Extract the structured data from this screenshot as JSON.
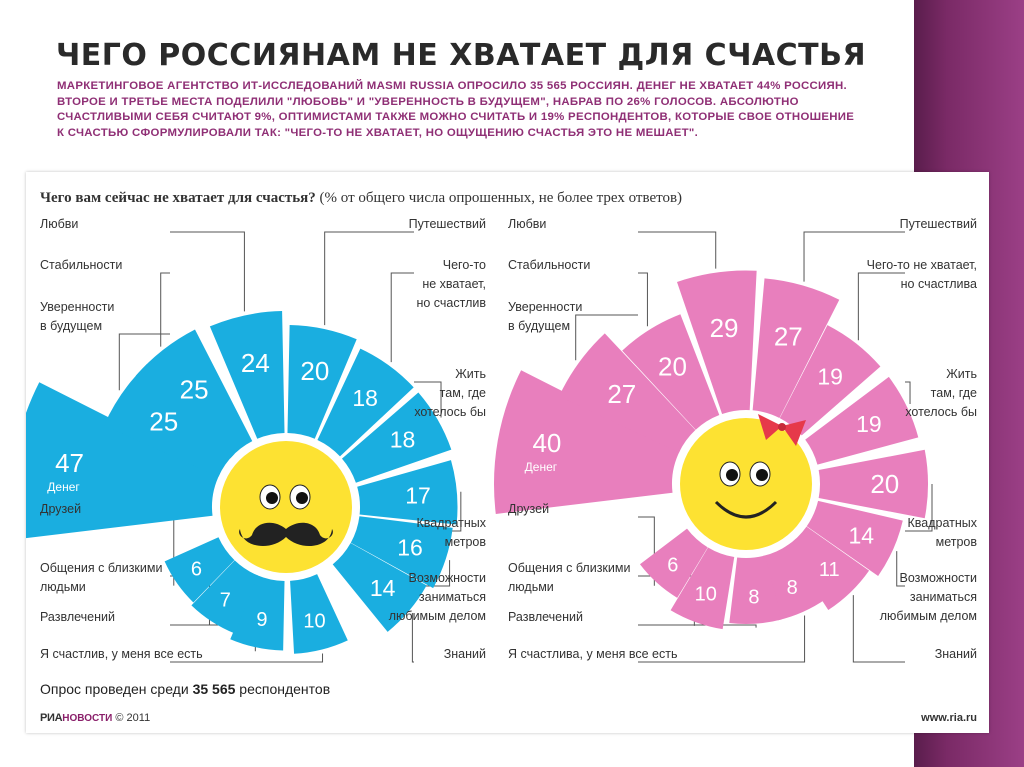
{
  "slide": {
    "title": "ЧЕГО РОССИЯНАМ НЕ ХВАТАЕТ ДЛЯ СЧАСТЬЯ",
    "subtitle": "Маркетинговое агентство ИТ-исследований Masmi Russia опросило 35 565 россиян. Денег не хватает 44% россиян. Второе и третье места поделили \"любовь\" и \"уверенность в будущем\", набрав по 26% голосов. Абсолютно счастливыми себя считают 9%, оптимистами также можно считать и 19% респондентов, которые свое отношение к счастью сформулировали так: \"Чего-то не хватает, но ощущению счастья это не мешает\"."
  },
  "panel": {
    "question": "Чего вам сейчас не хватает для счастья?",
    "question_note": "(% от общего числа опрошенных, не более трех ответов)",
    "footnote_prefix": "Опрос проведен среди",
    "footnote_count": "35 565",
    "footnote_suffix": "респондентов",
    "logo_ria": "РИА",
    "logo_novosti": "НОВОСТИ",
    "logo_year": "© 2011",
    "url": "www.ria.ru"
  },
  "chart_data": [
    {
      "type": "bar",
      "layout": "radial",
      "group": "men",
      "colors": {
        "bar": "#1aaee0",
        "face": "#fde232",
        "accent": "#222222"
      },
      "categories": [
        "Денег",
        "Уверенности в будущем",
        "Стабильности",
        "Любви",
        "Путешествий",
        "Чего-то не хватает, но счастлив",
        "Жить там, где хотелось бы",
        "Квадратных метров",
        "Возможности заниматься любимым делом",
        "Знаний",
        "Я счастлив, у меня все есть",
        "Развлечений",
        "Общения с близкими людьми",
        "Друзей"
      ],
      "values": [
        47,
        25,
        25,
        24,
        20,
        18,
        18,
        17,
        16,
        14,
        10,
        9,
        7,
        6
      ],
      "labels": [
        {
          "text": "Любви"
        },
        {
          "text": "Стабильности"
        },
        {
          "text": "Уверенности"
        },
        {
          "text": "в будущем"
        },
        {
          "text": "Путешествий"
        },
        {
          "text": "Чего-то"
        },
        {
          "text": "не хватает,"
        },
        {
          "text": "но счастлив"
        },
        {
          "text": "Жить"
        },
        {
          "text": "там, где"
        },
        {
          "text": "хотелось бы"
        },
        {
          "text": "Квадратных"
        },
        {
          "text": "метров"
        },
        {
          "text": "Возможности"
        },
        {
          "text": "заниматься"
        },
        {
          "text": "любимым делом"
        },
        {
          "text": "Знаний"
        },
        {
          "text": "Друзей"
        },
        {
          "text": "Общения с близкими"
        },
        {
          "text": "людьми"
        },
        {
          "text": "Развлечений"
        },
        {
          "text": "Я счастлив, у меня все есть"
        }
      ],
      "money_sublabel": "Денег"
    },
    {
      "type": "bar",
      "layout": "radial",
      "group": "women",
      "colors": {
        "bar": "#e87fbd",
        "face": "#fde232",
        "accent": "#e6394a"
      },
      "categories": [
        "Денег",
        "Уверенности в будущем",
        "Стабильности",
        "Любви",
        "Путешествий",
        "Чего-то не хватает, но счастлива",
        "Жить там, где хотелось бы",
        "Квадратных метров",
        "Возможности заниматься любимым делом",
        "Знаний",
        "Я счастлива, у меня все есть",
        "Развлечений",
        "Общения с близкими людьми",
        "Друзей"
      ],
      "values": [
        40,
        27,
        20,
        29,
        27,
        19,
        19,
        20,
        14,
        11,
        8,
        8,
        10,
        6
      ],
      "labels": [
        {
          "text": "Любви"
        },
        {
          "text": "Стабильности"
        },
        {
          "text": "Уверенности"
        },
        {
          "text": "в будущем"
        },
        {
          "text": "Путешествий"
        },
        {
          "text": "Чего-то не хватает,"
        },
        {
          "text": "но счастлива"
        },
        {
          "text": "Жить"
        },
        {
          "text": "там, где"
        },
        {
          "text": "хотелось бы"
        },
        {
          "text": "Квадратных"
        },
        {
          "text": "метров"
        },
        {
          "text": "Возможности"
        },
        {
          "text": "заниматься"
        },
        {
          "text": "любимым делом"
        },
        {
          "text": "Знаний"
        },
        {
          "text": "Друзей"
        },
        {
          "text": "Общения с близкими"
        },
        {
          "text": "людьми"
        },
        {
          "text": "Развлечений"
        },
        {
          "text": "Я счастлива, у меня все есть"
        }
      ],
      "money_sublabel": "Денег"
    }
  ]
}
